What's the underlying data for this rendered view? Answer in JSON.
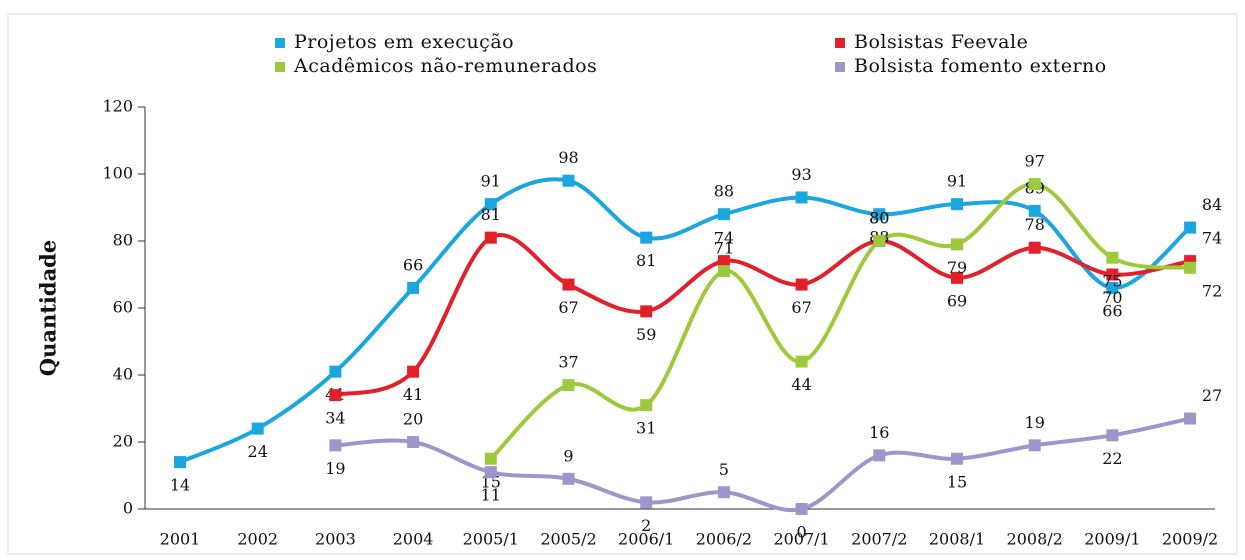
{
  "chart_data": {
    "type": "line",
    "y_label": "Quantidade",
    "categories": [
      "2001",
      "2002",
      "2003",
      "2004",
      "2005/1",
      "2005/2",
      "2006/1",
      "2006/2",
      "2007/1",
      "2007/2",
      "2008/1",
      "2008/2",
      "2009/1",
      "2009/2"
    ],
    "series": [
      {
        "name": "Projetos em execução",
        "color": "#1ba6e0",
        "values": [
          14,
          24,
          41,
          66,
          91,
          98,
          81,
          88,
          93,
          88,
          91,
          89,
          66,
          84
        ]
      },
      {
        "name": "Bolsistas Feevale",
        "color": "#e2202b",
        "values": [
          null,
          null,
          34,
          41,
          81,
          67,
          59,
          74,
          67,
          80,
          69,
          78,
          70,
          74
        ]
      },
      {
        "name": "Acadêmicos não-remunerados",
        "color": "#9dca3c",
        "values": [
          null,
          null,
          null,
          null,
          15,
          37,
          31,
          71,
          44,
          80,
          79,
          97,
          75,
          72
        ]
      },
      {
        "name": "Bolsista fomento externo",
        "color": "#9e96cb",
        "values": [
          null,
          null,
          19,
          20,
          11,
          9,
          2,
          5,
          0,
          16,
          15,
          19,
          22,
          27
        ]
      }
    ],
    "ylim": [
      0,
      120
    ],
    "yticks": [
      0,
      20,
      40,
      60,
      80,
      100,
      120
    ]
  }
}
